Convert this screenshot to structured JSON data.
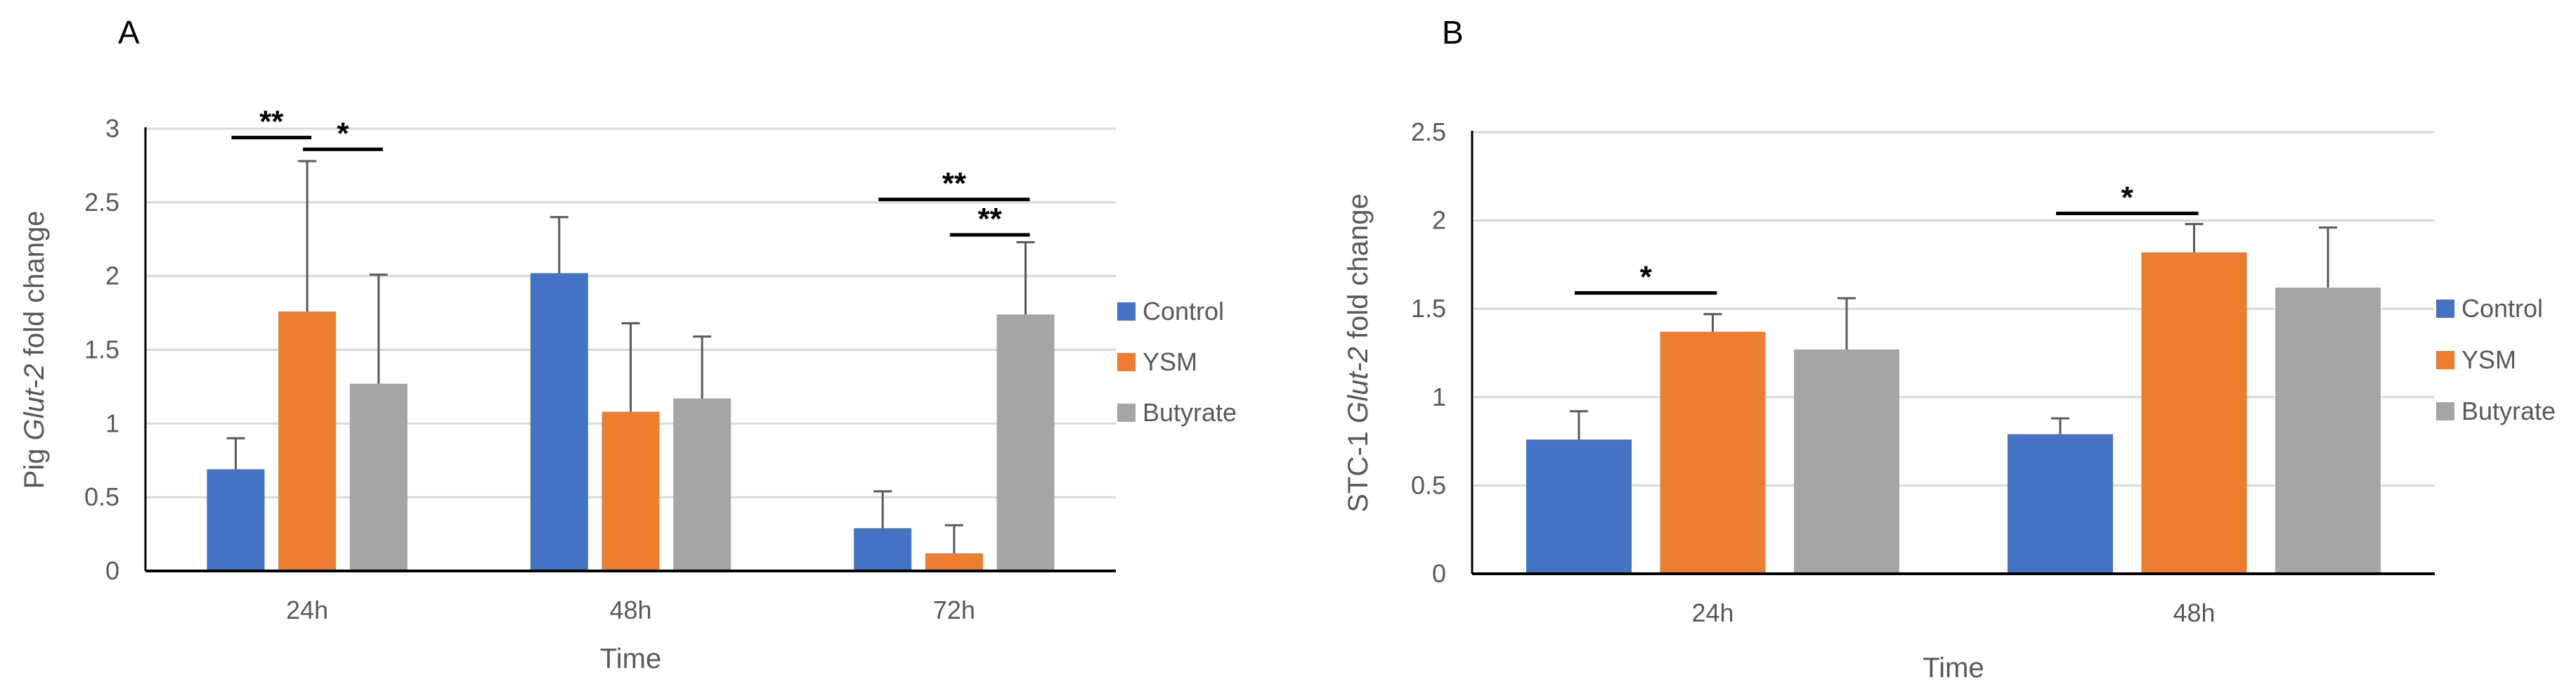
{
  "chart_data": [
    {
      "panel": "A",
      "type": "bar",
      "categories": [
        "24h",
        "48h",
        "72h"
      ],
      "series": [
        {
          "name": "Control",
          "color": "#4472C4",
          "values": [
            0.69,
            2.02,
            0.29
          ],
          "errors": [
            0.21,
            0.38,
            0.25
          ]
        },
        {
          "name": "YSM",
          "color": "#ED7D31",
          "values": [
            1.76,
            1.08,
            0.12
          ],
          "errors": [
            1.02,
            0.6,
            0.19
          ]
        },
        {
          "name": "Butyrate",
          "color": "#A5A5A5",
          "values": [
            1.27,
            1.17,
            1.74
          ],
          "errors": [
            0.74,
            0.42,
            0.49
          ]
        }
      ],
      "xlabel": "Time",
      "ylabel_prefix": "Pig ",
      "ylabel_italic": "Glut-2",
      "ylabel_suffix": " fold change",
      "ylim": [
        0,
        3
      ],
      "yticks": [
        "0",
        "0.5",
        "1",
        "1.5",
        "2",
        "2.5",
        "3"
      ],
      "grid": true,
      "legend": "right",
      "significance": [
        {
          "category": "24h",
          "from": "Control",
          "to": "YSM",
          "level": 2.94,
          "label": "**"
        },
        {
          "category": "24h",
          "from": "YSM",
          "to": "Butyrate",
          "level": 2.86,
          "label": "*"
        },
        {
          "category": "72h",
          "from": "Control",
          "to": "Butyrate",
          "level": 2.52,
          "label": "**"
        },
        {
          "category": "72h",
          "from": "YSM",
          "to": "Butyrate",
          "level": 2.28,
          "label": "**"
        }
      ]
    },
    {
      "panel": "B",
      "type": "bar",
      "categories": [
        "24h",
        "48h"
      ],
      "series": [
        {
          "name": "Control",
          "color": "#4472C4",
          "values": [
            0.76,
            0.79
          ],
          "errors": [
            0.16,
            0.09
          ]
        },
        {
          "name": "YSM",
          "color": "#ED7D31",
          "values": [
            1.37,
            1.82
          ],
          "errors": [
            0.1,
            0.16
          ]
        },
        {
          "name": "Butyrate",
          "color": "#A5A5A5",
          "values": [
            1.27,
            1.62
          ],
          "errors": [
            0.29,
            0.34
          ]
        }
      ],
      "xlabel": "Time",
      "ylabel_prefix": "STC-1 ",
      "ylabel_italic": "Glut-2",
      "ylabel_suffix": " fold change",
      "ylim": [
        0,
        2.5
      ],
      "yticks": [
        "0",
        "0.5",
        "1",
        "1.5",
        "2",
        "2.5"
      ],
      "grid": true,
      "legend": "right",
      "significance": [
        {
          "category": "24h",
          "from": "Control",
          "to": "YSM",
          "level": 1.59,
          "label": "*"
        },
        {
          "category": "48h",
          "from": "Control",
          "to": "YSM",
          "level": 2.04,
          "label": "*"
        }
      ]
    }
  ]
}
